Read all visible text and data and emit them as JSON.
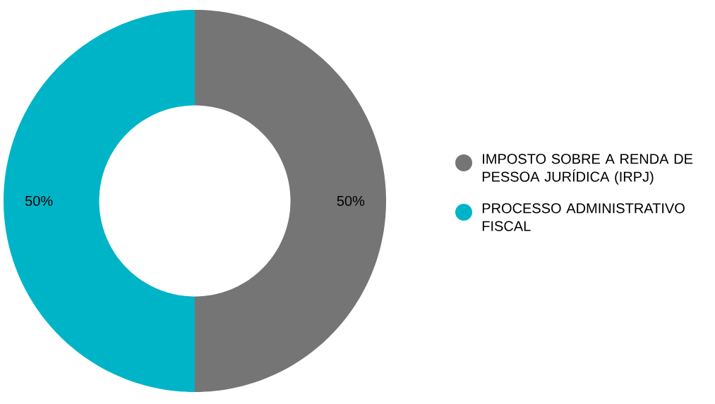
{
  "chart_data": {
    "type": "donut",
    "categories": [
      "IMPOSTO SOBRE A RENDA DE PESSOA JURÍDICA (IRPJ)",
      "PROCESSO ADMINISTRATIVO FISCAL"
    ],
    "values": [
      50,
      50
    ],
    "colors": [
      "#757575",
      "#00b4c8"
    ],
    "value_labels": [
      "50%",
      "50%"
    ],
    "legend": "right"
  }
}
